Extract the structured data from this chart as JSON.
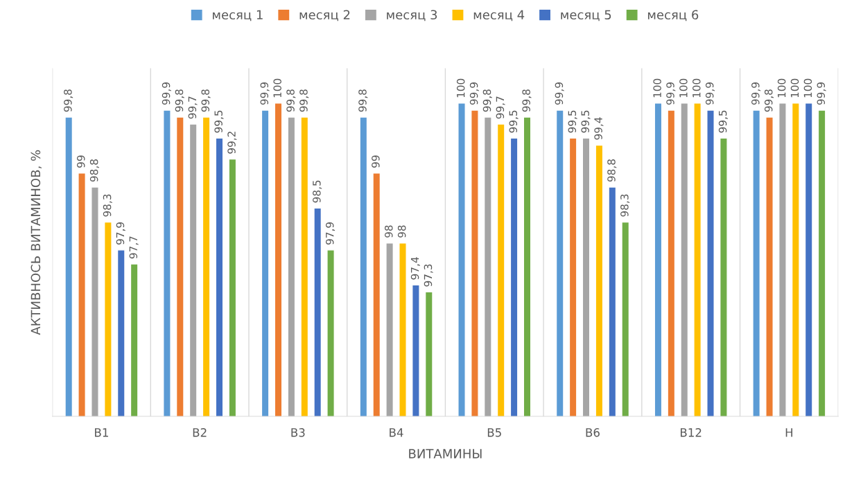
{
  "chart_data": {
    "type": "bar",
    "xlabel": "ВИТАМИНЫ",
    "ylabel": "АКТИВНОСЬ ВИТАМИНОВ, %",
    "categories": [
      "В1",
      "В2",
      "В3",
      "В4",
      "В5",
      "В6",
      "В12",
      "Н"
    ],
    "ylim": [
      95.52,
      100.5
    ],
    "tick_labels": "x",
    "legend": "top",
    "grid": "x",
    "series": [
      {
        "name": "месяц 1",
        "color": "#5b9bd5",
        "values": [
          99.8,
          99.9,
          99.9,
          99.8,
          100,
          99.9,
          100,
          99.9
        ],
        "value_labels": [
          "99,8",
          "99,9",
          "99,9",
          "99,8",
          "100",
          "99,9",
          "100",
          "99,9"
        ]
      },
      {
        "name": "месяц 2",
        "color": "#ed7d31",
        "values": [
          99,
          99.8,
          100,
          99,
          99.9,
          99.5,
          99.9,
          99.8
        ],
        "value_labels": [
          "99",
          "99,8",
          "100",
          "99",
          "99,9",
          "99,5",
          "99,9",
          "99,8"
        ]
      },
      {
        "name": "месяц 3",
        "color": "#a5a5a5",
        "values": [
          98.8,
          99.7,
          99.8,
          98,
          99.8,
          99.5,
          100,
          100
        ],
        "value_labels": [
          "98,8",
          "99,7",
          "99,8",
          "98",
          "99,8",
          "99,5",
          "100",
          "100"
        ]
      },
      {
        "name": "месяц 4",
        "color": "#ffc000",
        "values": [
          98.3,
          99.8,
          99.8,
          98,
          99.7,
          99.4,
          100,
          100
        ],
        "value_labels": [
          "98,3",
          "99,8",
          "99,8",
          "98",
          "99,7",
          "99,4",
          "100",
          "100"
        ]
      },
      {
        "name": "месяц 5",
        "color": "#4472c4",
        "values": [
          97.9,
          99.5,
          98.5,
          97.4,
          99.5,
          98.8,
          99.9,
          100
        ],
        "value_labels": [
          "97,9",
          "99,5",
          "98,5",
          "97,4",
          "99,5",
          "98,8",
          "99,9",
          "100"
        ]
      },
      {
        "name": "месяц 6",
        "color": "#70ad47",
        "values": [
          97.7,
          99.2,
          97.9,
          97.3,
          99.8,
          98.3,
          99.5,
          99.9
        ],
        "value_labels": [
          "97,7",
          "99,2",
          "97,9",
          "97,3",
          "99,8",
          "98,3",
          "99,5",
          "99,9"
        ]
      }
    ]
  }
}
